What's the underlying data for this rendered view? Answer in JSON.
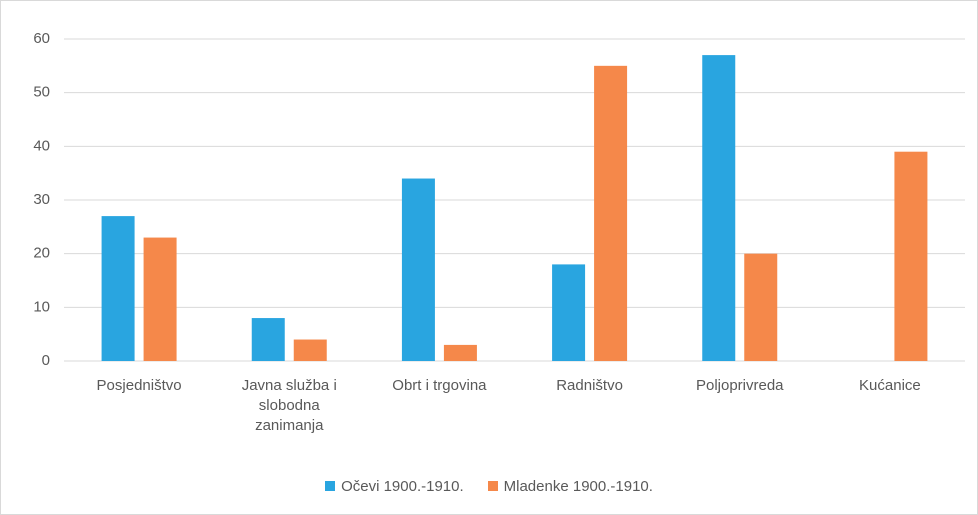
{
  "chart_data": {
    "type": "bar",
    "categories": [
      "Posjedništvo",
      "Javna služba i slobodna zanimanja",
      "Obrt i trgovina",
      "Radništvo",
      "Poljoprivreda",
      "Kućanice"
    ],
    "series": [
      {
        "name": "Očevi 1900.-1910.",
        "color": "#29a5e0",
        "values": [
          27,
          8,
          34,
          18,
          57,
          0
        ]
      },
      {
        "name": "Mladenke 1900.-1910.",
        "color": "#f5884a",
        "values": [
          23,
          4,
          3,
          55,
          20,
          39
        ]
      }
    ],
    "ylim": [
      0,
      60
    ],
    "yticks": [
      0,
      10,
      20,
      30,
      40,
      50,
      60
    ],
    "grid": true,
    "legend": "bottom"
  }
}
